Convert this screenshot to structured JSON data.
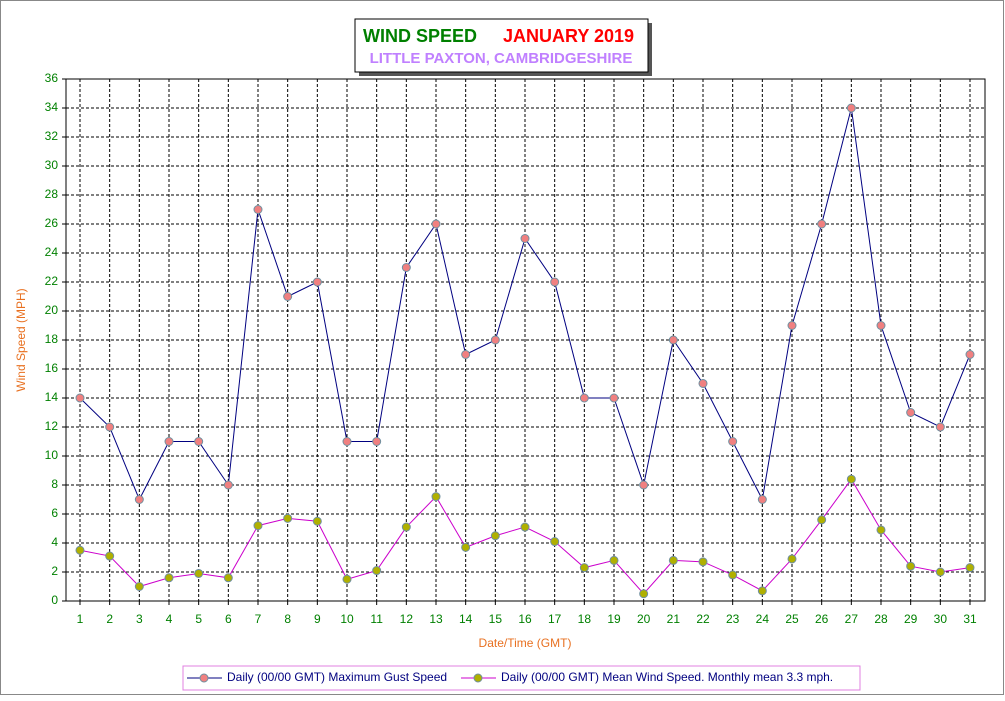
{
  "chart_data": {
    "type": "line",
    "title": "WIND SPEED",
    "title_date": "JANUARY 2019",
    "subtitle": "LITTLE PAXTON, CAMBRIDGESHIRE",
    "x_label": "Date/Time (GMT)",
    "y_label": "Wind Speed (MPH)",
    "categories": [
      "1",
      "2",
      "3",
      "4",
      "5",
      "6",
      "7",
      "8",
      "9",
      "10",
      "11",
      "12",
      "13",
      "14",
      "15",
      "16",
      "17",
      "18",
      "19",
      "20",
      "21",
      "22",
      "23",
      "24",
      "25",
      "26",
      "27",
      "28",
      "29",
      "30",
      "31"
    ],
    "series": [
      {
        "name": "Daily (00/00 GMT) Maximum Gust Speed",
        "color": "#000080",
        "marker_color": "#f08080",
        "values": [
          14,
          12,
          7,
          11,
          11,
          8,
          27,
          21,
          22,
          11,
          11,
          23,
          26,
          17,
          18,
          25,
          22,
          14,
          14,
          8,
          18,
          15,
          11,
          7,
          19,
          26,
          34,
          19,
          13,
          12,
          17
        ]
      },
      {
        "name": "Daily (00/00 GMT) Mean Wind Speed. Monthly mean 3.3 mph.",
        "color": "#cc00cc",
        "marker_color": "#b0b000",
        "values": [
          3.5,
          3.1,
          1.0,
          1.6,
          1.9,
          1.6,
          5.2,
          5.7,
          5.5,
          1.5,
          2.1,
          5.1,
          7.2,
          3.7,
          4.5,
          5.1,
          4.1,
          2.3,
          2.8,
          0.5,
          2.8,
          2.7,
          1.8,
          0.7,
          2.9,
          5.6,
          8.4,
          4.9,
          2.4,
          2.0,
          2.3
        ]
      }
    ],
    "ylim": [
      0,
      36
    ],
    "yticks": [
      0,
      2,
      4,
      6,
      8,
      10,
      12,
      14,
      16,
      18,
      20,
      22,
      24,
      26,
      28,
      30,
      32,
      34,
      36
    ],
    "grid": true
  }
}
